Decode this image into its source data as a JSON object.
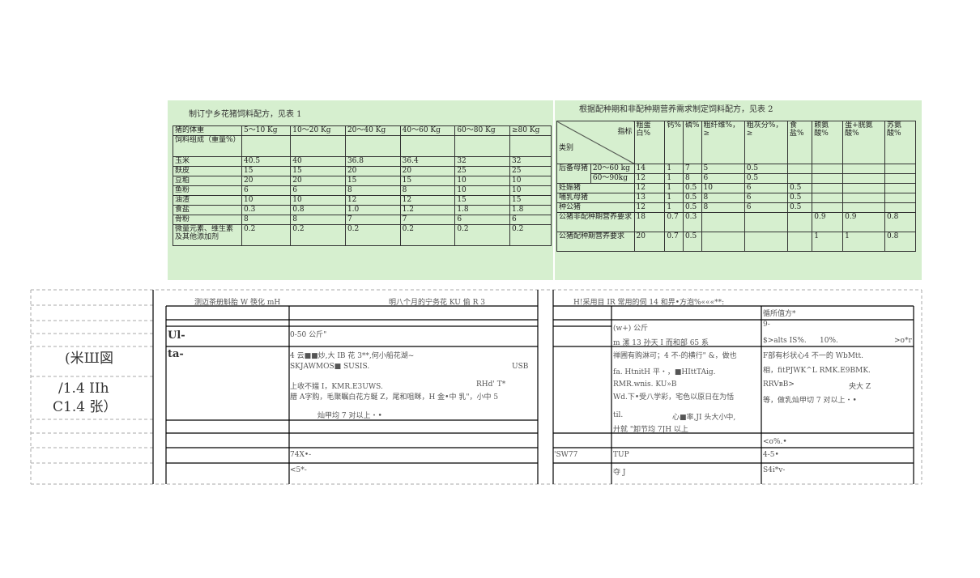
{
  "left_table": {
    "title": "制订宁乡花猪饲料配方，见表 1",
    "header": [
      "猪的体重",
      "5～10 Kg",
      "10～20 Kg",
      "20～40 Kg",
      "40～60 Kg",
      "60～80 Kg",
      "≥80 Kg"
    ],
    "rows": [
      {
        "label": "饲料组成（重量%）",
        "values": []
      },
      {
        "label": "玉米",
        "values": [
          "40.5",
          "40",
          "36.8",
          "36.4",
          "32",
          "32"
        ]
      },
      {
        "label": "麸皮",
        "values": [
          "15",
          "15",
          "20",
          "20",
          "25",
          "25"
        ]
      },
      {
        "label": "豆粕",
        "values": [
          "20",
          "20",
          "15",
          "15",
          "10",
          "10"
        ]
      },
      {
        "label": "鱼粉",
        "values": [
          "6",
          "6",
          "8",
          "8",
          "10",
          "10"
        ]
      },
      {
        "label": "油渣",
        "values": [
          "10",
          "10",
          "12",
          "12",
          "15",
          "15"
        ]
      },
      {
        "label": "食盐",
        "values": [
          "0.3",
          "0.8",
          "1.0",
          "1.2",
          "1.8",
          "1.8"
        ]
      },
      {
        "label": "骨粉",
        "values": [
          "8",
          "8",
          "7",
          "7",
          "6",
          "6"
        ]
      },
      {
        "label": "微量元素、维生素及其他添加剂",
        "values": [
          "0.2",
          "0.2",
          "0.2",
          "0.2",
          "0.2",
          "0.2"
        ]
      }
    ]
  },
  "right_table": {
    "title": "根据配种期和非配种期营养需求制定饲料配方，见表 2",
    "corner": [
      "指标",
      "类别"
    ],
    "header": [
      "粗蛋白%",
      "钙%",
      "磷%",
      "粗纤维%，≥",
      "粗灰分%，≥",
      "食盐%",
      "赖氨酸%",
      "蛋+胱氨酸%",
      "苏氨酸%"
    ],
    "rows": [
      {
        "label": "后备母猪",
        "sub": "20～60 kg",
        "values": [
          "14",
          "1",
          "7",
          "5",
          "0.5"
        ]
      },
      {
        "sub": "60～90kg",
        "values": [
          "12",
          "1",
          "8",
          "6",
          "0.5"
        ]
      },
      {
        "label": "妊娠猪",
        "values": [
          "12",
          "1",
          "0.5",
          "10",
          "6",
          "0.5"
        ]
      },
      {
        "label": "哺乳母猪",
        "values": [
          "13",
          "1",
          "0.5",
          "8",
          "6",
          "0.5"
        ]
      },
      {
        "label": "种公猪",
        "values": [
          "12",
          "1",
          "0.5",
          "8",
          "6",
          "0.5"
        ]
      },
      {
        "label": "公猪非配种期营养要求",
        "values": [
          "18",
          "0.7",
          "0.3",
          "",
          "",
          "",
          "0.9",
          "0.9",
          "0.8"
        ]
      },
      {
        "label": "公猪配种期营养要求",
        "values": [
          "20",
          "0.7",
          "0.5",
          "",
          "",
          "",
          "1",
          "1",
          "0.8"
        ]
      }
    ]
  },
  "lower": {
    "texts": [
      "测迈茶册斛胎 W 筷化 mH",
      "明八个月的宁务花 KU 偷 R 3",
      "H!采用目 IR 常用的伺 14 和畀•方泡%«««**:",
      "循所值方*",
      "9-",
      "(w+) 公斤",
      "Ul-",
      "0-50 公斤\"",
      "m 漯 13 孙天 I 而和部 65 系",
      "$>alts IS%.",
      "10%.",
      ">o*r",
      "(米Ш図",
      "ta-",
      "4 云■■炒,大 IB 花 3**,何小船花湖~",
      "禅圃有购淋可；4 不-的横行\" &，做也",
      "F部有杉状心4 不一的 WbMtt.",
      "SKJAWMOS■ SUSIS.",
      "USB",
      "fa. HtnitH 平・，■HIttTAig.",
      "相，fitPJWK^L RMK.E9BMK.",
      "/1.4 IIh",
      "C1.4 张）",
      "上收不媸 I，KMR.E3UWS.",
      "RHd' T*",
      "RMR.wnis. KU»B",
      "RRVвB>",
      "央大 Z",
      "腊 A字购，毛聚瞩白花方蜒 Z，尾和咀眯，H 金•中 乳\"，小中 5",
      "Wd.下•受八学彩，宅色以原日在为恬",
      "等，做乳灿甲切 7 对以上・•",
      "灿甲均 7 对以上・•",
      "til.",
      "心■率,JI 头大小中,",
      "廾就 \"卸节均 7JH 以上",
      "<o%.•",
      "74X•-",
      "'SW77",
      "TUP",
      "4-5•",
      "<5*-",
      "夺 J",
      "S4i*v-"
    ]
  }
}
